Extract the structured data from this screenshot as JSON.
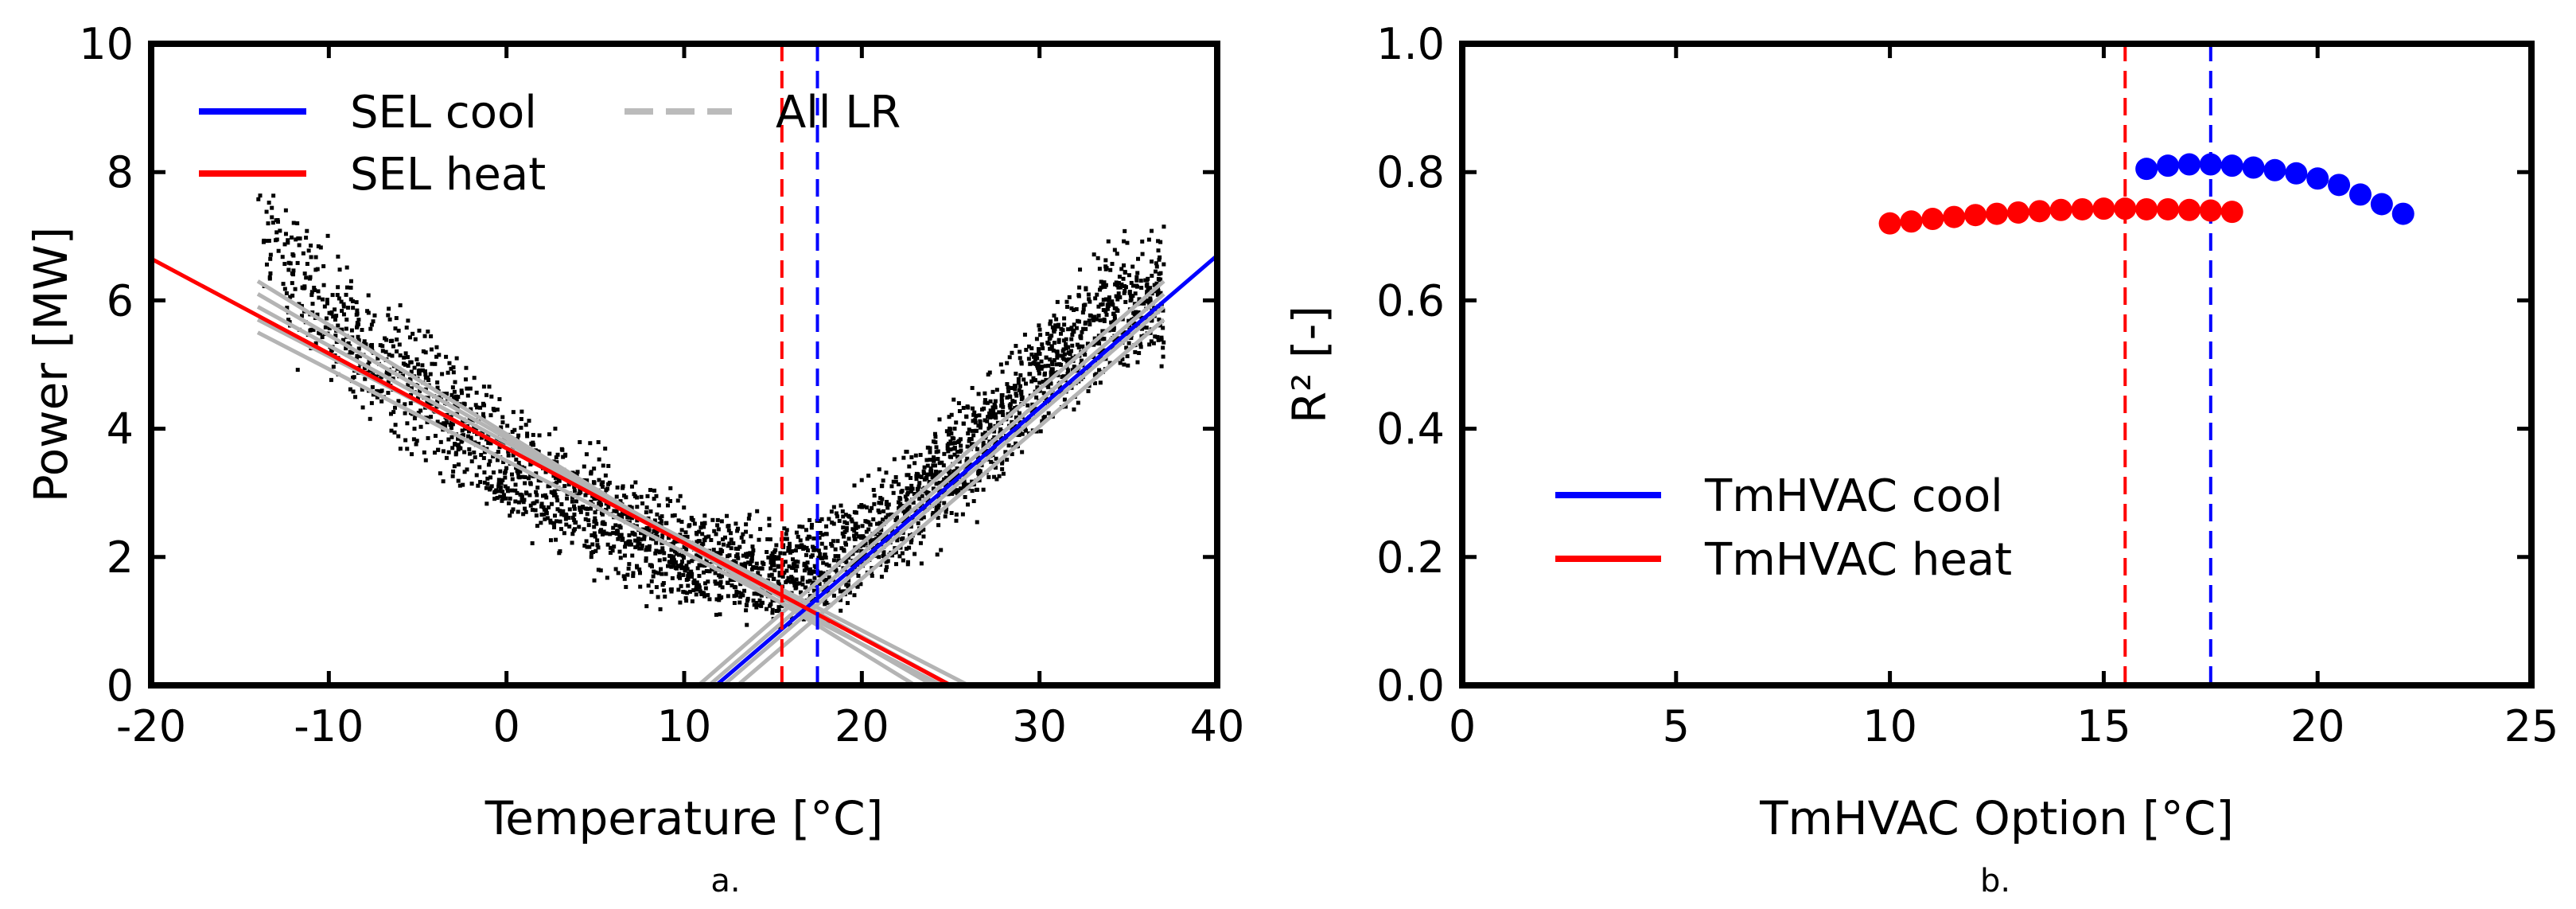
{
  "chart_data": [
    {
      "type": "scatter",
      "panel_label": "a.",
      "xlabel": "Temperature [°C]",
      "ylabel": "Power [MW]",
      "xlim": [
        -20,
        40
      ],
      "ylim": [
        0,
        10
      ],
      "xticks": [
        "-20",
        "-10",
        "0",
        "10",
        "20",
        "30",
        "40"
      ],
      "yticks": [
        "0",
        "2",
        "4",
        "6",
        "8",
        "10"
      ],
      "legend_position": "top-left",
      "scatter_points_description": "dense black scatter of power vs temperature forming a V shape with minimum near 15-20 °C",
      "scatter_envelope": [
        {
          "t": -14,
          "p": 7.3
        },
        {
          "t": -10,
          "p": 5.6
        },
        {
          "t": -5,
          "p": 4.6
        },
        {
          "t": 0,
          "p": 3.5
        },
        {
          "t": 5,
          "p": 2.7
        },
        {
          "t": 10,
          "p": 2.0
        },
        {
          "t": 15,
          "p": 1.7
        },
        {
          "t": 18,
          "p": 1.9
        },
        {
          "t": 22,
          "p": 2.6
        },
        {
          "t": 26,
          "p": 3.6
        },
        {
          "t": 30,
          "p": 4.8
        },
        {
          "t": 34,
          "p": 5.8
        },
        {
          "t": 36,
          "p": 6.0
        }
      ],
      "series": [
        {
          "name": "SEL cool",
          "kind": "line",
          "color": "#0000ff",
          "x": [
            11.8,
            40
          ],
          "y": [
            0,
            6.7
          ]
        },
        {
          "name": "SEL heat",
          "kind": "line",
          "color": "#ff0000",
          "x": [
            -20,
            25
          ],
          "y": [
            6.65,
            0
          ]
        },
        {
          "name": "All LR",
          "kind": "lines",
          "color": "#b4b4b4",
          "cool_lines": [
            [
              10.8,
              0,
              37,
              6.3
            ],
            [
              11.4,
              0,
              37,
              6.1
            ],
            [
              12.2,
              0,
              37,
              5.9
            ],
            [
              13.0,
              0,
              37,
              5.7
            ]
          ],
          "heat_lines": [
            [
              -14,
              6.3,
              23,
              0
            ],
            [
              -14,
              6.1,
              24,
              0
            ],
            [
              -14,
              5.9,
              25,
              0
            ],
            [
              -14,
              5.7,
              26,
              0
            ],
            [
              -14,
              5.5,
              24.5,
              0
            ]
          ]
        }
      ],
      "vlines": [
        {
          "x": 15.5,
          "color": "#ff0000",
          "style": "dashed"
        },
        {
          "x": 17.5,
          "color": "#0000ff",
          "style": "dashed"
        }
      ]
    },
    {
      "type": "scatter",
      "panel_label": "b.",
      "xlabel": "TmHVAC Option [°C]",
      "ylabel": "R² [-]",
      "xlim": [
        0,
        25
      ],
      "ylim": [
        0,
        1.0
      ],
      "xticks": [
        "0",
        "5",
        "10",
        "15",
        "20",
        "25"
      ],
      "yticks": [
        "0.0",
        "0.2",
        "0.4",
        "0.6",
        "0.8",
        "1.0"
      ],
      "legend_position": "bottom-left",
      "series": [
        {
          "name": "TmHVAC cool",
          "color": "#0000ff",
          "x": [
            16.0,
            16.5,
            17.0,
            17.5,
            18.0,
            18.5,
            19.0,
            19.5,
            20.0,
            20.5,
            21.0,
            21.5,
            22.0
          ],
          "y": [
            0.805,
            0.81,
            0.812,
            0.812,
            0.81,
            0.807,
            0.803,
            0.798,
            0.79,
            0.78,
            0.765,
            0.75,
            0.735
          ]
        },
        {
          "name": "TmHVAC heat",
          "color": "#ff0000",
          "x": [
            10.0,
            10.5,
            11.0,
            11.5,
            12.0,
            12.5,
            13.0,
            13.5,
            14.0,
            14.5,
            15.0,
            15.5,
            16.0,
            16.5,
            17.0,
            17.5,
            18.0
          ],
          "y": [
            0.72,
            0.723,
            0.727,
            0.73,
            0.733,
            0.735,
            0.737,
            0.739,
            0.741,
            0.742,
            0.743,
            0.743,
            0.742,
            0.742,
            0.741,
            0.74,
            0.738
          ]
        }
      ],
      "vlines": [
        {
          "x": 15.5,
          "color": "#ff0000",
          "style": "dashed"
        },
        {
          "x": 17.5,
          "color": "#0000ff",
          "style": "dashed"
        }
      ]
    }
  ]
}
